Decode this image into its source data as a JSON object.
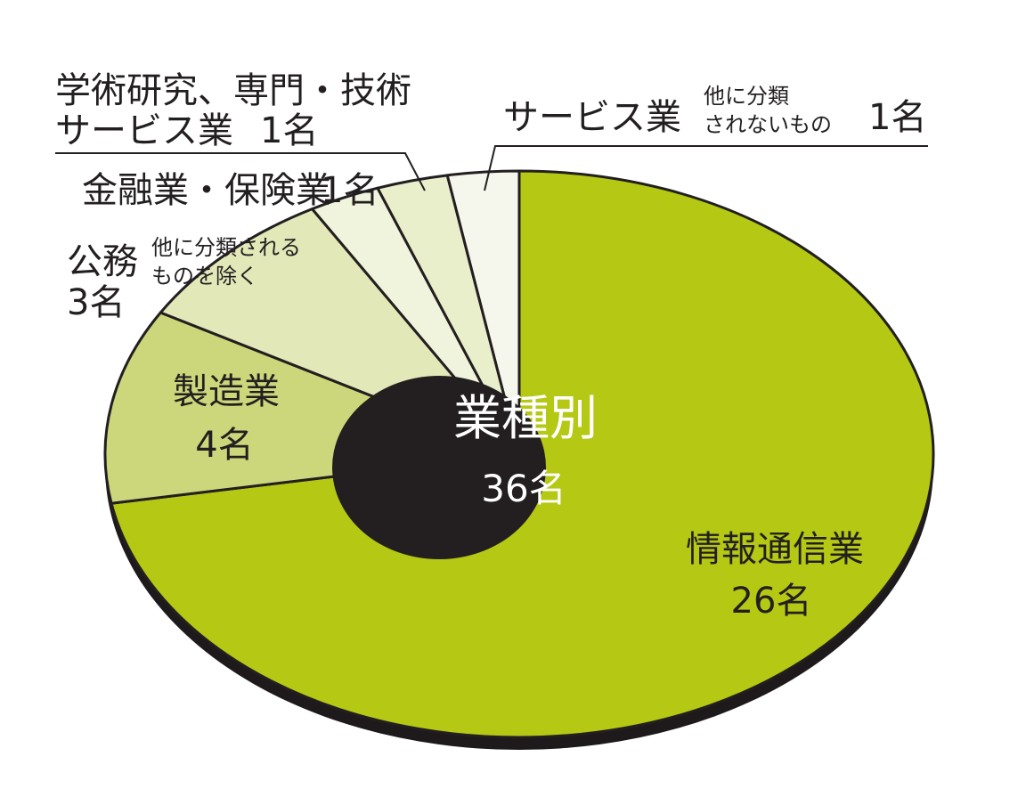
{
  "chart_data": {
    "type": "pie",
    "center_title": "業種別",
    "center_total": "36名",
    "slices": [
      {
        "label": "情報通信業",
        "value": 26,
        "value_label": "26名",
        "color": "#b4c814"
      },
      {
        "label": "製造業",
        "value": 4,
        "value_label": "4名",
        "color": "#ccd67a"
      },
      {
        "label": "公務",
        "sublabel": [
          "他に分類される",
          "ものを除く"
        ],
        "value": 3,
        "value_label": "3名",
        "color": "#e2e8b8"
      },
      {
        "label": "金融業・保険業",
        "value": 1,
        "value_label": "1名",
        "color": "#f1f4dc"
      },
      {
        "label": "学術研究、専門・技術サービス業",
        "lines": [
          "学術研究、専門・技術",
          "サービス業"
        ],
        "value": 1,
        "value_label": "1名",
        "color": "#e9eecb"
      },
      {
        "label": "サービス業",
        "sublabel": [
          "他に分類",
          "されないもの"
        ],
        "value": 1,
        "value_label": "1名",
        "color": "#f6f7ec"
      }
    ],
    "depth_color": "#1e1a1b",
    "hole_color": "#231f20"
  }
}
